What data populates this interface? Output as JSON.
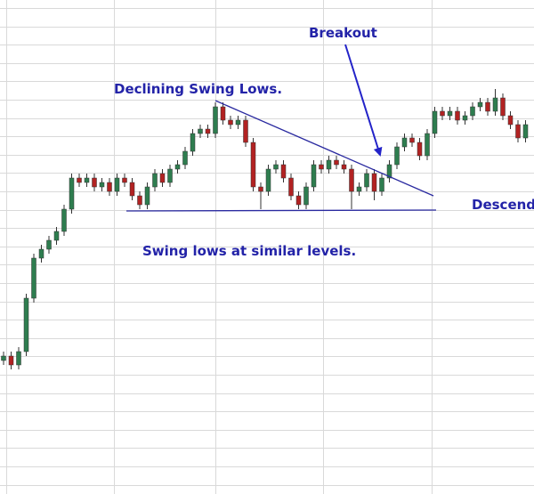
{
  "chart_data": {
    "type": "candlestick",
    "annotations": {
      "breakout": "Breakout",
      "declining": "Declining Swing Lows.",
      "similar": "Swing lows at similar levels.",
      "pattern": "Descending Triangle"
    },
    "up_color": "#2e7d4f",
    "down_color": "#b22222",
    "ylim": [
      0,
      111
    ],
    "open": [
      30,
      31,
      29,
      32,
      44,
      53,
      55,
      57,
      59,
      64,
      71,
      70,
      71,
      69,
      70,
      68,
      71,
      70,
      67,
      65,
      69,
      72,
      70,
      73,
      74,
      77,
      81,
      82,
      81,
      87,
      84,
      83,
      84,
      79,
      69,
      68,
      73,
      74,
      71,
      67,
      65,
      69,
      74,
      73,
      75,
      74,
      73,
      68,
      69,
      72,
      68,
      71,
      74,
      78,
      80,
      79,
      76,
      81,
      86,
      85,
      86,
      84,
      85,
      87,
      88,
      86,
      89,
      85,
      83,
      80
    ],
    "high": [
      32,
      32,
      33,
      45,
      54,
      56,
      58,
      60,
      65,
      72,
      72,
      72,
      72,
      71,
      71,
      72,
      72,
      71,
      68,
      70,
      73,
      73,
      74,
      75,
      78,
      82,
      83,
      83,
      88,
      88,
      85,
      85,
      85,
      80,
      70,
      74,
      75,
      75,
      72,
      68,
      70,
      75,
      75,
      76,
      76,
      75,
      74,
      70,
      73,
      73,
      72,
      75,
      79,
      81,
      81,
      80,
      82,
      87,
      87,
      87,
      87,
      86,
      88,
      89,
      89,
      91,
      90,
      86,
      84,
      84
    ],
    "low": [
      29,
      28,
      28,
      31,
      43,
      52,
      54,
      56,
      58,
      63,
      69,
      69,
      68,
      68,
      67,
      67,
      69,
      66,
      64,
      64,
      68,
      69,
      69,
      72,
      73,
      76,
      80,
      80,
      80,
      83,
      82,
      82,
      78,
      68,
      64,
      67,
      72,
      70,
      66,
      64,
      64,
      68,
      72,
      72,
      73,
      72,
      64,
      67,
      68,
      66,
      67,
      70,
      73,
      77,
      78,
      75,
      75,
      80,
      84,
      84,
      83,
      83,
      84,
      86,
      85,
      85,
      84,
      82,
      79,
      79
    ],
    "close": [
      31,
      29,
      32,
      44,
      53,
      55,
      57,
      59,
      64,
      71,
      70,
      71,
      69,
      70,
      68,
      71,
      70,
      67,
      65,
      69,
      72,
      70,
      73,
      74,
      77,
      81,
      82,
      81,
      87,
      84,
      83,
      84,
      79,
      69,
      68,
      73,
      74,
      71,
      67,
      65,
      69,
      74,
      73,
      75,
      74,
      73,
      68,
      69,
      72,
      68,
      71,
      74,
      78,
      80,
      79,
      76,
      81,
      86,
      85,
      86,
      84,
      85,
      87,
      88,
      86,
      89,
      85,
      83,
      80,
      83
    ]
  }
}
